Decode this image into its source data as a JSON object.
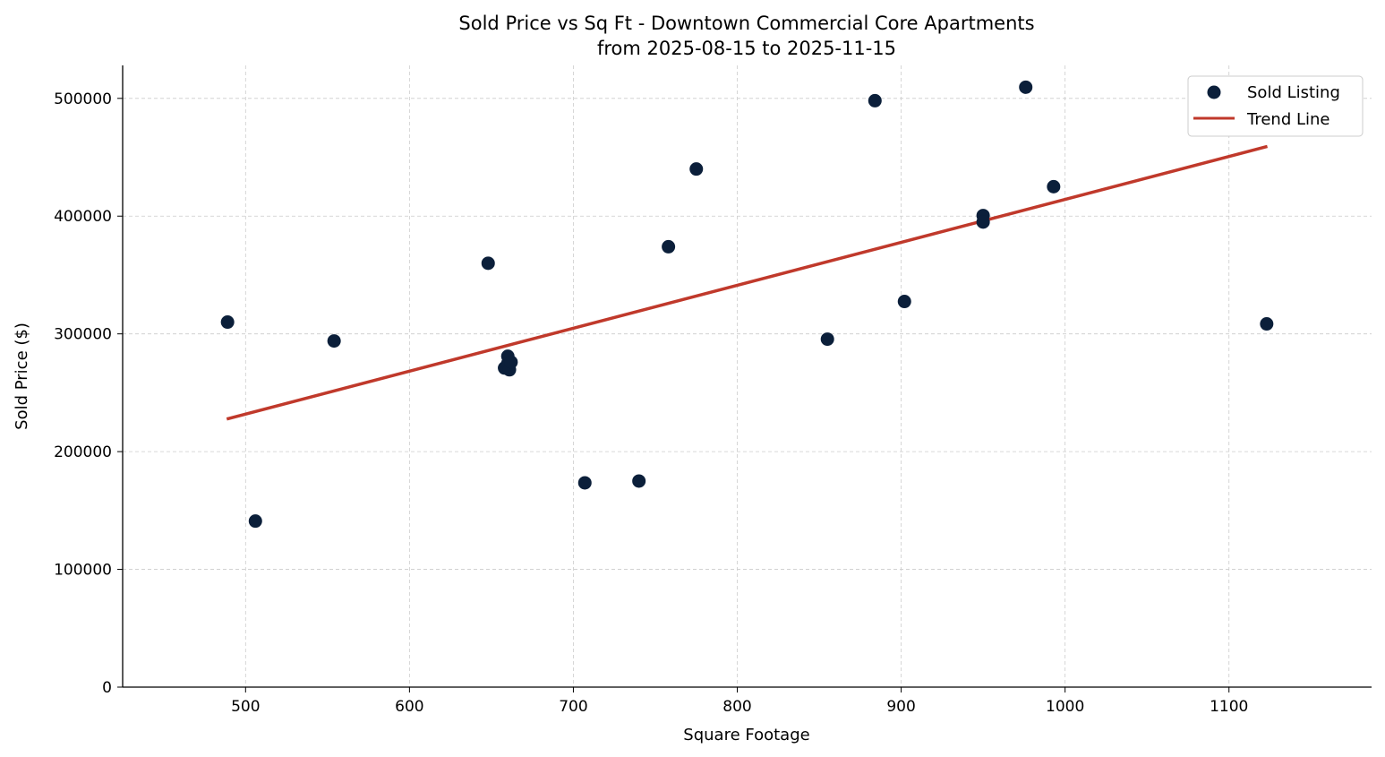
{
  "chart_data": {
    "type": "scatter",
    "title": "Sold Price vs Sq Ft - Downtown Commercial Core Apartments",
    "subtitle": "from 2025-08-15 to 2025-11-15",
    "xlabel": "Square Footage",
    "ylabel": "Sold Price ($)",
    "xlim": [
      425,
      1187
    ],
    "ylim": [
      0,
      528000
    ],
    "xticks": [
      500,
      600,
      700,
      800,
      900,
      1000,
      1100
    ],
    "yticks": [
      0,
      100000,
      200000,
      300000,
      400000,
      500000
    ],
    "grid": true,
    "legend_position": "top-right",
    "series": [
      {
        "name": "Sold Listing",
        "color": "#0b1f3a",
        "points": [
          [
            489,
            310000
          ],
          [
            506,
            141000
          ],
          [
            554,
            294000
          ],
          [
            648,
            360000
          ],
          [
            658,
            271000
          ],
          [
            660,
            281000
          ],
          [
            660,
            275000
          ],
          [
            661,
            269500
          ],
          [
            662,
            276000
          ],
          [
            707,
            173500
          ],
          [
            740,
            175000
          ],
          [
            758,
            374000
          ],
          [
            775,
            440000
          ],
          [
            855,
            295500
          ],
          [
            884,
            498000
          ],
          [
            902,
            327500
          ],
          [
            950,
            400500
          ],
          [
            950,
            395000
          ],
          [
            976,
            509500
          ],
          [
            993,
            425000
          ],
          [
            1123,
            308500
          ]
        ]
      },
      {
        "name": "Trend Line",
        "color": "#c0392b",
        "points": [
          [
            488.5,
            227700
          ],
          [
            1123.4,
            459200
          ]
        ]
      }
    ]
  }
}
